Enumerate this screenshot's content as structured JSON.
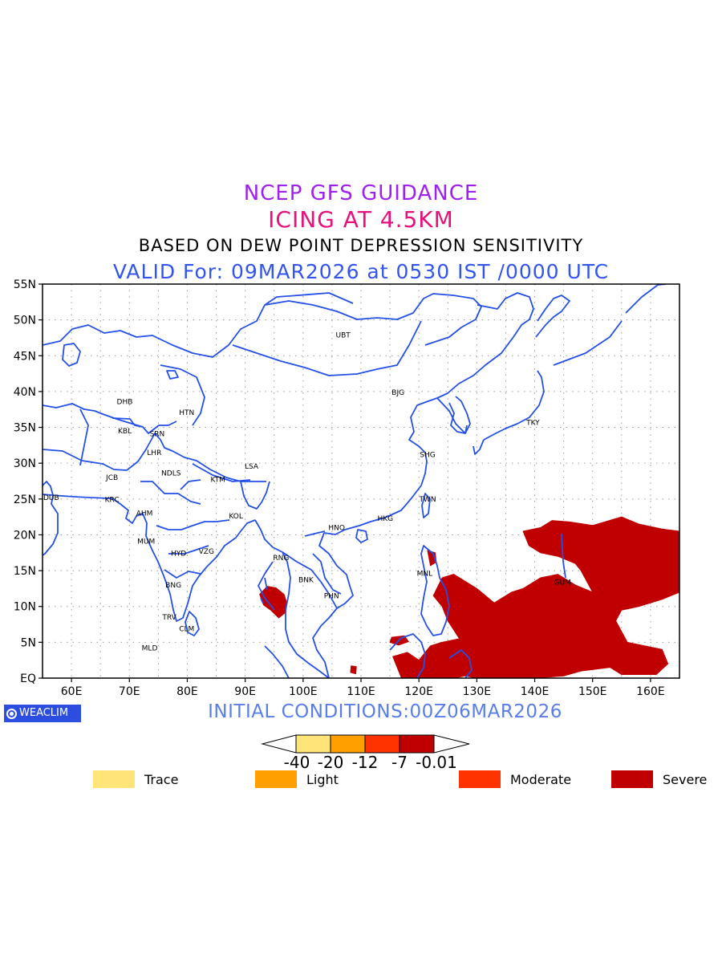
{
  "titles": {
    "line1": "NCEP GFS GUIDANCE",
    "line2": "ICING AT 4.5KM",
    "line3": "BASED ON DEW POINT DEPRESSION SENSITIVITY",
    "line4": "VALID For: 09MAR2026 at 0530 IST /0000 UTC"
  },
  "axes": {
    "lat_labels": [
      "55N",
      "50N",
      "45N",
      "40N",
      "35N",
      "30N",
      "25N",
      "20N",
      "15N",
      "10N",
      "5N",
      "EQ"
    ],
    "lon_labels": [
      "60E",
      "70E",
      "80E",
      "90E",
      "100E",
      "110E",
      "120E",
      "130E",
      "140E",
      "150E",
      "160E"
    ],
    "lat_range": [
      0,
      55
    ],
    "lon_range": [
      55,
      165
    ]
  },
  "stations": [
    {
      "code": "UBT",
      "lon": 106.9,
      "lat": 47.9
    },
    {
      "code": "BJG",
      "lon": 116.4,
      "lat": 39.9
    },
    {
      "code": "TKY",
      "lon": 139.7,
      "lat": 35.7
    },
    {
      "code": "SHG",
      "lon": 121.5,
      "lat": 31.2
    },
    {
      "code": "TWN",
      "lon": 121.5,
      "lat": 25.0
    },
    {
      "code": "HKG",
      "lon": 114.2,
      "lat": 22.3
    },
    {
      "code": "HNO",
      "lon": 105.8,
      "lat": 21.0
    },
    {
      "code": "RNG",
      "lon": 96.2,
      "lat": 16.8
    },
    {
      "code": "BNK",
      "lon": 100.5,
      "lat": 13.7
    },
    {
      "code": "PHN",
      "lon": 104.9,
      "lat": 11.5
    },
    {
      "code": "MNL",
      "lon": 121.0,
      "lat": 14.6
    },
    {
      "code": "GUM",
      "lon": 144.8,
      "lat": 13.4
    },
    {
      "code": "DHB",
      "lon": 69.2,
      "lat": 38.6
    },
    {
      "code": "HTN",
      "lon": 79.9,
      "lat": 37.1
    },
    {
      "code": "KBL",
      "lon": 69.2,
      "lat": 34.5
    },
    {
      "code": "SRN",
      "lon": 74.8,
      "lat": 34.1
    },
    {
      "code": "LHR",
      "lon": 74.3,
      "lat": 31.5
    },
    {
      "code": "JCB",
      "lon": 67.0,
      "lat": 28.0
    },
    {
      "code": "NDLS",
      "lon": 77.2,
      "lat": 28.6
    },
    {
      "code": "KTM",
      "lon": 85.3,
      "lat": 27.7
    },
    {
      "code": "LSA",
      "lon": 91.1,
      "lat": 29.6
    },
    {
      "code": "DUB",
      "lon": 55.3,
      "lat": 25.2
    },
    {
      "code": "KRC",
      "lon": 67.0,
      "lat": 24.9
    },
    {
      "code": "AHM",
      "lon": 72.6,
      "lat": 23.0
    },
    {
      "code": "KOL",
      "lon": 88.4,
      "lat": 22.6
    },
    {
      "code": "MUM",
      "lon": 72.9,
      "lat": 19.1
    },
    {
      "code": "HYD",
      "lon": 78.5,
      "lat": 17.4
    },
    {
      "code": "VZG",
      "lon": 83.3,
      "lat": 17.7
    },
    {
      "code": "BNG",
      "lon": 77.6,
      "lat": 13.0
    },
    {
      "code": "TRV",
      "lon": 76.9,
      "lat": 8.5
    },
    {
      "code": "CLM",
      "lon": 79.9,
      "lat": 6.9
    },
    {
      "code": "MLD",
      "lon": 73.5,
      "lat": 4.2
    }
  ],
  "icing_areas": [
    {
      "name": "western-pacific-severe",
      "polygon": [
        [
          138,
          20.5
        ],
        [
          141,
          21
        ],
        [
          143,
          22
        ],
        [
          146,
          21.8
        ],
        [
          150,
          21.3
        ],
        [
          155,
          22.5
        ],
        [
          158,
          21.5
        ],
        [
          162,
          20.8
        ],
        [
          165,
          20.5
        ],
        [
          165,
          12
        ],
        [
          162,
          11
        ],
        [
          158,
          10
        ],
        [
          155,
          9.5
        ],
        [
          154,
          8
        ],
        [
          156,
          5
        ],
        [
          162,
          4
        ],
        [
          163,
          2
        ],
        [
          161,
          0.5
        ],
        [
          155,
          0.5
        ],
        [
          153,
          1.5
        ],
        [
          148,
          1
        ],
        [
          145,
          0.3
        ],
        [
          140,
          0
        ],
        [
          130,
          0
        ],
        [
          128,
          0.3
        ],
        [
          126,
          0
        ],
        [
          120,
          0
        ],
        [
          117,
          0
        ],
        [
          115.5,
          3
        ],
        [
          118,
          3.6
        ],
        [
          120,
          2.5
        ],
        [
          122,
          4.5
        ],
        [
          124,
          5
        ],
        [
          127,
          5.5
        ],
        [
          125,
          8
        ],
        [
          124,
          10
        ],
        [
          122.5,
          11.5
        ],
        [
          124,
          14
        ],
        [
          126,
          14.5
        ],
        [
          130,
          12.5
        ],
        [
          133,
          10.5
        ],
        [
          136,
          12
        ],
        [
          138,
          12.5
        ],
        [
          141,
          14
        ],
        [
          144,
          14.5
        ],
        [
          147,
          13
        ],
        [
          150,
          12
        ],
        [
          148,
          15
        ],
        [
          147,
          16
        ],
        [
          144,
          17
        ],
        [
          141,
          17.5
        ],
        [
          139,
          18.5
        ]
      ]
    },
    {
      "name": "andaman-severe",
      "polygon": [
        [
          92.5,
          11.7
        ],
        [
          93.8,
          12.8
        ],
        [
          95.3,
          12.6
        ],
        [
          96.7,
          11.7
        ],
        [
          97.2,
          10.5
        ],
        [
          97.0,
          9.2
        ],
        [
          95.8,
          8.4
        ],
        [
          94.4,
          9.5
        ],
        [
          93.2,
          10.2
        ]
      ]
    },
    {
      "name": "luzon-severe",
      "polygon": [
        [
          121.5,
          17.8
        ],
        [
          122.8,
          17.5
        ],
        [
          123.0,
          16.2
        ],
        [
          122.0,
          15.7
        ]
      ]
    },
    {
      "name": "borneo-severe",
      "polygon": [
        [
          115.3,
          5.7
        ],
        [
          117.5,
          5.9
        ],
        [
          118.2,
          5.1
        ],
        [
          116.5,
          4.6
        ],
        [
          115.0,
          5.0
        ]
      ]
    },
    {
      "name": "sw-equator-speck",
      "polygon": [
        [
          108.3,
          1.7
        ],
        [
          109.2,
          1.6
        ],
        [
          109.1,
          0.6
        ],
        [
          108.2,
          0.8
        ]
      ]
    }
  ],
  "legend": {
    "scale_labels": [
      "-40",
      "-20",
      "-12",
      "-7",
      "-0.01"
    ],
    "colors": [
      "#ffe47a",
      "#ffa000",
      "#ff3300",
      "#c00000"
    ],
    "categories": [
      {
        "label": "Trace",
        "color": "#ffe47a"
      },
      {
        "label": "Light",
        "color": "#ffa000"
      },
      {
        "label": "Moderate",
        "color": "#ff3300"
      },
      {
        "label": "Severe",
        "color": "#c00000"
      }
    ]
  },
  "initial_conditions": "INITIAL CONDITIONS:00Z06MAR2026",
  "logo": {
    "text": "WEACLIM",
    "icon": "weaclim-logo-icon"
  },
  "colors": {
    "coastline": "#2450e8",
    "grid": "#9a9a9a",
    "severe": "#c00000"
  }
}
